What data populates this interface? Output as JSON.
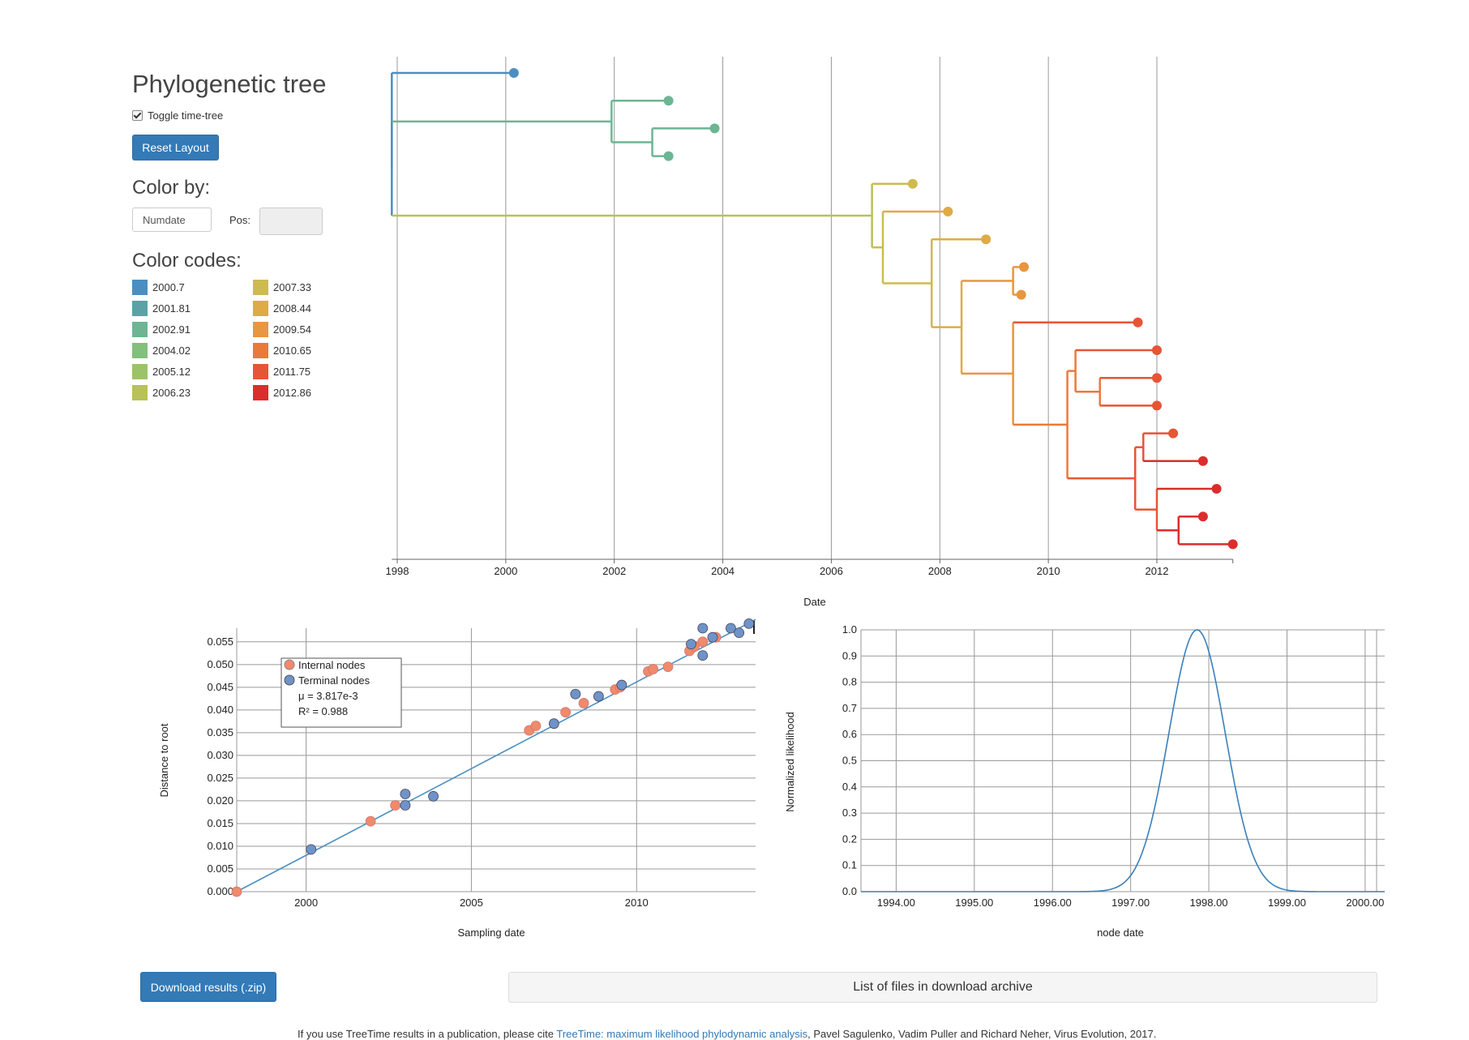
{
  "sidebar": {
    "title": "Phylogenetic tree",
    "toggle_label": "Toggle time-tree",
    "reset_label": "Reset Layout",
    "color_by_heading": "Color by:",
    "color_by_value": "Numdate",
    "pos_label": "Pos:",
    "color_codes_heading": "Color codes:",
    "color_codes": [
      {
        "label": "2000.7",
        "color": "#4b8fc2"
      },
      {
        "label": "2001.81",
        "color": "#5aa2a6"
      },
      {
        "label": "2002.91",
        "color": "#6db593"
      },
      {
        "label": "2004.02",
        "color": "#82c07c"
      },
      {
        "label": "2005.12",
        "color": "#9dc369"
      },
      {
        "label": "2006.23",
        "color": "#b8c15a"
      },
      {
        "label": "2007.33",
        "color": "#cdbb4f"
      },
      {
        "label": "2008.44",
        "color": "#dfab46"
      },
      {
        "label": "2009.54",
        "color": "#e89640"
      },
      {
        "label": "2010.65",
        "color": "#ea7a3a"
      },
      {
        "label": "2011.75",
        "color": "#e65535"
      },
      {
        "label": "2012.86",
        "color": "#dc2d2d"
      }
    ]
  },
  "footer": {
    "download_label": "Download results (.zip)",
    "files_panel_label": "List of files in download archive",
    "citation_prefix": "If you use TreeTime results in a publication, please cite ",
    "citation_link": "TreeTime: maximum likelihood phylodynamic analysis",
    "citation_suffix": ", Pavel Sagulenko, Vadim Puller and Richard Neher, Virus Evolution, 2017."
  },
  "chart_data": [
    {
      "type": "tree",
      "xlabel": "Date",
      "xlim": [
        1997.9,
        2013.4
      ],
      "x_ticks": [
        1998,
        2000,
        2002,
        2004,
        2006,
        2008,
        2010,
        2012
      ],
      "tree": {
        "date": 1997.9,
        "children": [
          {
            "date": 2000.15
          },
          {
            "date": 1997.9,
            "children": [
              {
                "date": 2001.95,
                "children": [
                  {
                    "date": 2001.95,
                    "children": [
                      {
                        "date": 2003.0
                      }
                    ]
                  },
                  {
                    "date": 2002.7,
                    "children": [
                      {
                        "date": 2003.85
                      },
                      {
                        "date": 2003.0
                      }
                    ]
                  }
                ]
              },
              {
                "date": 2006.75,
                "children": [
                  {
                    "date": 2007.5
                  },
                  {
                    "date": 2006.95,
                    "children": [
                      {
                        "date": 2008.15
                      },
                      {
                        "date": 2007.85,
                        "children": [
                          {
                            "date": 2008.85
                          },
                          {
                            "date": 2008.4,
                            "children": [
                              {
                                "date": 2009.35,
                                "children": [
                                  {
                                    "date": 2009.55
                                  },
                                  {
                                    "date": 2009.5
                                  }
                                ]
                              },
                              {
                                "date": 2009.35,
                                "children": [
                                  {
                                    "date": 2011.65
                                  },
                                  {
                                    "date": 2010.35,
                                    "children": [
                                      {
                                        "date": 2010.5,
                                        "children": [
                                          {
                                            "date": 2012.0
                                          },
                                          {
                                            "date": 2010.95,
                                            "children": [
                                              {
                                                "date": 2012.0
                                              },
                                              {
                                                "date": 2012.0
                                              }
                                            ]
                                          }
                                        ]
                                      },
                                      {
                                        "date": 2011.6,
                                        "children": [
                                          {
                                            "date": 2011.75,
                                            "children": [
                                              {
                                                "date": 2012.3
                                              },
                                              {
                                                "date": 2012.85
                                              }
                                            ]
                                          },
                                          {
                                            "date": 2012.0,
                                            "children": [
                                              {
                                                "date": 2013.1
                                              },
                                              {
                                                "date": 2012.4,
                                                "children": [
                                                  {
                                                    "date": 2012.85
                                                  },
                                                  {
                                                    "date": 2013.4
                                                  }
                                                ]
                                              }
                                            ]
                                          }
                                        ]
                                      }
                                    ]
                                  }
                                ]
                              }
                            ]
                          }
                        ]
                      }
                    ]
                  }
                ]
              }
            ]
          }
        ]
      }
    },
    {
      "type": "scatter",
      "xlabel": "Sampling date",
      "ylabel": "Distance to root",
      "xlim": [
        1997.9,
        2013.6
      ],
      "ylim": [
        0.0,
        0.058
      ],
      "x_ticks": [
        2000,
        2005,
        2010
      ],
      "y_ticks": [
        0.0,
        0.005,
        0.01,
        0.015,
        0.02,
        0.025,
        0.03,
        0.035,
        0.04,
        0.045,
        0.05,
        0.055
      ],
      "y_tick_labels": [
        "0.000",
        "0.005",
        "0.010",
        "0.015",
        "0.020",
        "0.025",
        "0.030",
        "0.035",
        "0.040",
        "0.045",
        "0.050",
        "0.055"
      ],
      "legend": [
        "Internal nodes",
        "Terminal nodes"
      ],
      "mu_text": "μ = 3.817e-3",
      "r2_text": "R² = 0.988",
      "series": [
        {
          "name": "Internal nodes",
          "color": "#f08a6a",
          "points": [
            [
              1997.9,
              0.0
            ],
            [
              2001.95,
              0.0155
            ],
            [
              2002.7,
              0.019
            ],
            [
              2006.75,
              0.0355
            ],
            [
              2006.95,
              0.0365
            ],
            [
              2007.85,
              0.0395
            ],
            [
              2008.4,
              0.0415
            ],
            [
              2009.35,
              0.0445
            ],
            [
              2009.5,
              0.045
            ],
            [
              2010.35,
              0.0485
            ],
            [
              2010.5,
              0.049
            ],
            [
              2010.95,
              0.0495
            ],
            [
              2011.6,
              0.053
            ],
            [
              2011.75,
              0.054
            ],
            [
              2012.0,
              0.055
            ],
            [
              2012.4,
              0.056
            ]
          ]
        },
        {
          "name": "Terminal nodes",
          "color": "#6f93c8",
          "points": [
            [
              2000.15,
              0.0093
            ],
            [
              2003.0,
              0.019
            ],
            [
              2003.0,
              0.0215
            ],
            [
              2003.85,
              0.021
            ],
            [
              2007.5,
              0.037
            ],
            [
              2008.15,
              0.0435
            ],
            [
              2008.85,
              0.043
            ],
            [
              2009.55,
              0.0455
            ],
            [
              2011.65,
              0.0545
            ],
            [
              2012.0,
              0.058
            ],
            [
              2012.0,
              0.052
            ],
            [
              2012.3,
              0.056
            ],
            [
              2012.85,
              0.058
            ],
            [
              2013.1,
              0.057
            ],
            [
              2013.4,
              0.059
            ]
          ]
        }
      ],
      "regression": [
        [
          1997.9,
          0.0
        ],
        [
          2013.6,
          0.0599
        ]
      ]
    },
    {
      "type": "line",
      "xlabel": "node date",
      "ylabel": "Normalized likelihood",
      "xlim": [
        1993.55,
        2000.25
      ],
      "ylim": [
        0,
        1.0
      ],
      "x_ticks": [
        1994,
        1995,
        1996,
        1997,
        1998,
        1999,
        2000
      ],
      "x_tick_labels": [
        "1994.00",
        "1995.00",
        "1996.00",
        "1997.00",
        "1998.00",
        "1999.00",
        "2000.00"
      ],
      "y_ticks": [
        0,
        0.1,
        0.2,
        0.3,
        0.4,
        0.5,
        0.6,
        0.7,
        0.8,
        0.9,
        1.0
      ],
      "y_tick_labels": [
        "0.0",
        "0.1",
        "0.2",
        "0.3",
        "0.4",
        "0.5",
        "0.6",
        "0.7",
        "0.8",
        "0.9",
        "1.0"
      ],
      "peak": 1997.85,
      "sigma": 0.36
    }
  ]
}
